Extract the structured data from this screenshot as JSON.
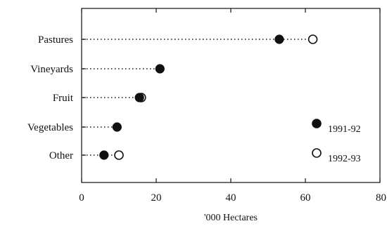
{
  "chart_data": {
    "type": "scatter",
    "title": "",
    "xlabel": "'000 Hectares",
    "ylabel": "",
    "xlim": [
      0,
      80
    ],
    "xticks": [
      0,
      20,
      40,
      60,
      80
    ],
    "categories": [
      "Pastures",
      "Vineyards",
      "Fruit",
      "Vegetables",
      "Other"
    ],
    "series": [
      {
        "name": "1991-92",
        "marker": "filled-circle",
        "values": [
          53,
          21,
          15.5,
          9.5,
          6
        ]
      },
      {
        "name": "1992-93",
        "marker": "open-circle",
        "values": [
          62,
          null,
          16,
          null,
          10
        ]
      }
    ],
    "connector": "dotted line from axis to rightmost marker",
    "grid": false,
    "legend_placement": "bottom-right",
    "colors": {
      "ink": "#111111",
      "background": "#ffffff"
    }
  }
}
